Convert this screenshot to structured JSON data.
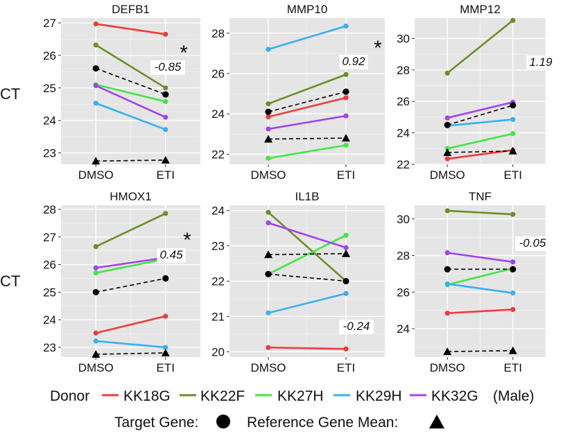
{
  "ylabel": "CT",
  "series_colors": {
    "KK18G": "#EE3B3B",
    "KK22F": "#6B8E23",
    "KK27H": "#3EE83E",
    "KK29H": "#36B0F0",
    "KK32G": "#A043F0",
    "target": "#000000",
    "reference": "#000000"
  },
  "legend": {
    "donor_title": "Donor",
    "donors": [
      "KK18G",
      "KK22F",
      "KK27H",
      "KK29H",
      "KK32G"
    ],
    "male_note": "(Male)",
    "target_label": "Target Gene:",
    "reference_label": "Reference Gene Mean:"
  },
  "chart_data": [
    {
      "type": "line",
      "title": "DEFB1",
      "categories": [
        "DMSO",
        "ETI"
      ],
      "ylim": [
        22.65,
        27.15
      ],
      "yticks": [
        23,
        24,
        25,
        26,
        27
      ],
      "annotation": "-0.85",
      "significant": true,
      "series": [
        {
          "name": "KK18G",
          "values": [
            26.97,
            26.65
          ]
        },
        {
          "name": "KK22F",
          "values": [
            26.32,
            25.0
          ]
        },
        {
          "name": "KK27H",
          "values": [
            25.1,
            24.58
          ]
        },
        {
          "name": "KK29H",
          "values": [
            24.53,
            23.72
          ]
        },
        {
          "name": "KK32G",
          "values": [
            25.07,
            24.1
          ]
        },
        {
          "name": "Target Gene",
          "values": [
            25.6,
            24.8
          ]
        },
        {
          "name": "Reference Gene Mean",
          "values": [
            22.75,
            22.78
          ]
        }
      ]
    },
    {
      "type": "line",
      "title": "MMP10",
      "categories": [
        "DMSO",
        "ETI"
      ],
      "ylim": [
        21.5,
        28.75
      ],
      "yticks": [
        22,
        24,
        26,
        28
      ],
      "annotation": "0.92",
      "significant": true,
      "series": [
        {
          "name": "KK18G",
          "values": [
            23.85,
            24.8
          ]
        },
        {
          "name": "KK22F",
          "values": [
            24.5,
            25.95
          ]
        },
        {
          "name": "KK27H",
          "values": [
            21.8,
            22.45
          ]
        },
        {
          "name": "KK29H",
          "values": [
            27.2,
            28.35
          ]
        },
        {
          "name": "KK32G",
          "values": [
            23.25,
            23.9
          ]
        },
        {
          "name": "Target Gene",
          "values": [
            24.1,
            25.1
          ]
        },
        {
          "name": "Reference Gene Mean",
          "values": [
            22.75,
            22.8
          ]
        }
      ]
    },
    {
      "type": "line",
      "title": "MMP12",
      "categories": [
        "DMSO",
        "ETI"
      ],
      "ylim": [
        22.0,
        31.3
      ],
      "yticks": [
        22,
        24,
        26,
        28,
        30
      ],
      "annotation": "1.19",
      "significant": false,
      "series": [
        {
          "name": "KK18G",
          "values": [
            22.35,
            22.9
          ]
        },
        {
          "name": "KK22F",
          "values": [
            27.8,
            31.15
          ]
        },
        {
          "name": "KK27H",
          "values": [
            23.0,
            23.95
          ]
        },
        {
          "name": "KK29H",
          "values": [
            24.45,
            24.85
          ]
        },
        {
          "name": "KK32G",
          "values": [
            24.95,
            25.95
          ]
        },
        {
          "name": "Target Gene",
          "values": [
            24.5,
            25.75
          ]
        },
        {
          "name": "Reference Gene Mean",
          "values": [
            22.75,
            22.85
          ]
        }
      ]
    },
    {
      "type": "line",
      "title": "HMOX1",
      "categories": [
        "DMSO",
        "ETI"
      ],
      "ylim": [
        22.65,
        28.15
      ],
      "yticks": [
        23,
        24,
        25,
        26,
        27,
        28
      ],
      "annotation": "0.45",
      "significant": true,
      "series": [
        {
          "name": "KK18G",
          "values": [
            23.52,
            24.13
          ]
        },
        {
          "name": "KK22F",
          "values": [
            26.65,
            27.85
          ]
        },
        {
          "name": "KK27H",
          "values": [
            25.7,
            26.2
          ]
        },
        {
          "name": "KK29H",
          "values": [
            23.23,
            23.0
          ]
        },
        {
          "name": "KK32G",
          "values": [
            25.88,
            26.25
          ]
        },
        {
          "name": "Target Gene",
          "values": [
            25.0,
            25.5
          ]
        },
        {
          "name": "Reference Gene Mean",
          "values": [
            22.75,
            22.8
          ]
        }
      ]
    },
    {
      "type": "line",
      "title": "IL1B",
      "categories": [
        "DMSO",
        "ETI"
      ],
      "ylim": [
        19.85,
        24.15
      ],
      "yticks": [
        20,
        21,
        22,
        23,
        24
      ],
      "annotation": "-0.24",
      "significant": false,
      "series": [
        {
          "name": "KK18G",
          "values": [
            20.12,
            20.08
          ]
        },
        {
          "name": "KK22F",
          "values": [
            23.95,
            22.0
          ]
        },
        {
          "name": "KK27H",
          "values": [
            22.2,
            23.3
          ]
        },
        {
          "name": "KK29H",
          "values": [
            21.1,
            21.65
          ]
        },
        {
          "name": "KK32G",
          "values": [
            23.65,
            22.95
          ]
        },
        {
          "name": "Target Gene",
          "values": [
            22.2,
            22.0
          ]
        },
        {
          "name": "Reference Gene Mean",
          "values": [
            22.75,
            22.78
          ]
        }
      ]
    },
    {
      "type": "line",
      "title": "TNF",
      "categories": [
        "DMSO",
        "ETI"
      ],
      "ylim": [
        22.45,
        30.75
      ],
      "yticks": [
        24,
        26,
        28,
        30
      ],
      "annotation": "-0.05",
      "significant": false,
      "series": [
        {
          "name": "KK18G",
          "values": [
            24.85,
            25.05
          ]
        },
        {
          "name": "KK22F",
          "values": [
            30.45,
            30.25
          ]
        },
        {
          "name": "KK27H",
          "values": [
            26.4,
            27.3
          ]
        },
        {
          "name": "KK29H",
          "values": [
            26.45,
            25.95
          ]
        },
        {
          "name": "KK32G",
          "values": [
            28.15,
            27.65
          ]
        },
        {
          "name": "Target Gene",
          "values": [
            27.25,
            27.25
          ]
        },
        {
          "name": "Reference Gene Mean",
          "values": [
            22.75,
            22.8
          ]
        }
      ]
    }
  ]
}
